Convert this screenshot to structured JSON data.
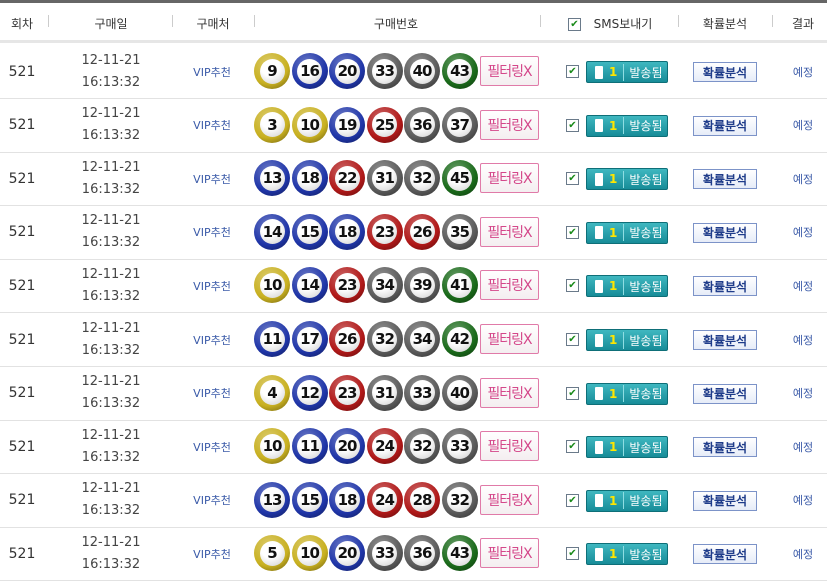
{
  "header": {
    "round": "회차",
    "date": "구매일",
    "shop": "구매처",
    "numbers": "구매번호",
    "sms": "SMS보내기",
    "analysis": "확률분석",
    "result": "결과"
  },
  "ball_colors": {
    "1-10": "#c8b020",
    "11-20": "#1f35a8",
    "21-30": "#b01818",
    "31-40": "#5a5a5a",
    "41-45": "#1a6a1a"
  },
  "rows": [
    {
      "round": "521",
      "date": "12-11-21",
      "time": "16:13:32",
      "shop": "VIP추천",
      "numbers": [
        9,
        16,
        20,
        33,
        40,
        43
      ],
      "filter": "필터링X",
      "sms_count": "1",
      "sms_status": "발송됨",
      "analysis": "확률분석",
      "result": "예정"
    },
    {
      "round": "521",
      "date": "12-11-21",
      "time": "16:13:32",
      "shop": "VIP추천",
      "numbers": [
        3,
        10,
        19,
        25,
        36,
        37
      ],
      "filter": "필터링X",
      "sms_count": "1",
      "sms_status": "발송됨",
      "analysis": "확률분석",
      "result": "예정"
    },
    {
      "round": "521",
      "date": "12-11-21",
      "time": "16:13:32",
      "shop": "VIP추천",
      "numbers": [
        13,
        18,
        22,
        31,
        32,
        45
      ],
      "filter": "필터링X",
      "sms_count": "1",
      "sms_status": "발송됨",
      "analysis": "확률분석",
      "result": "예정"
    },
    {
      "round": "521",
      "date": "12-11-21",
      "time": "16:13:32",
      "shop": "VIP추천",
      "numbers": [
        14,
        15,
        18,
        23,
        26,
        35
      ],
      "filter": "필터링X",
      "sms_count": "1",
      "sms_status": "발송됨",
      "analysis": "확률분석",
      "result": "예정"
    },
    {
      "round": "521",
      "date": "12-11-21",
      "time": "16:13:32",
      "shop": "VIP추천",
      "numbers": [
        10,
        14,
        23,
        34,
        39,
        41
      ],
      "filter": "필터링X",
      "sms_count": "1",
      "sms_status": "발송됨",
      "analysis": "확률분석",
      "result": "예정"
    },
    {
      "round": "521",
      "date": "12-11-21",
      "time": "16:13:32",
      "shop": "VIP추천",
      "numbers": [
        11,
        17,
        26,
        32,
        34,
        42
      ],
      "filter": "필터링X",
      "sms_count": "1",
      "sms_status": "발송됨",
      "analysis": "확률분석",
      "result": "예정"
    },
    {
      "round": "521",
      "date": "12-11-21",
      "time": "16:13:32",
      "shop": "VIP추천",
      "numbers": [
        4,
        12,
        23,
        31,
        33,
        40
      ],
      "filter": "필터링X",
      "sms_count": "1",
      "sms_status": "발송됨",
      "analysis": "확률분석",
      "result": "예정"
    },
    {
      "round": "521",
      "date": "12-11-21",
      "time": "16:13:32",
      "shop": "VIP추천",
      "numbers": [
        10,
        11,
        20,
        24,
        32,
        33
      ],
      "filter": "필터링X",
      "sms_count": "1",
      "sms_status": "발송됨",
      "analysis": "확률분석",
      "result": "예정"
    },
    {
      "round": "521",
      "date": "12-11-21",
      "time": "16:13:32",
      "shop": "VIP추천",
      "numbers": [
        13,
        15,
        18,
        24,
        28,
        32
      ],
      "filter": "필터링X",
      "sms_count": "1",
      "sms_status": "발송됨",
      "analysis": "확률분석",
      "result": "예정"
    },
    {
      "round": "521",
      "date": "12-11-21",
      "time": "16:13:32",
      "shop": "VIP추천",
      "numbers": [
        5,
        10,
        20,
        33,
        36,
        43
      ],
      "filter": "필터링X",
      "sms_count": "1",
      "sms_status": "발송됨",
      "analysis": "확률분석",
      "result": "예정"
    }
  ]
}
